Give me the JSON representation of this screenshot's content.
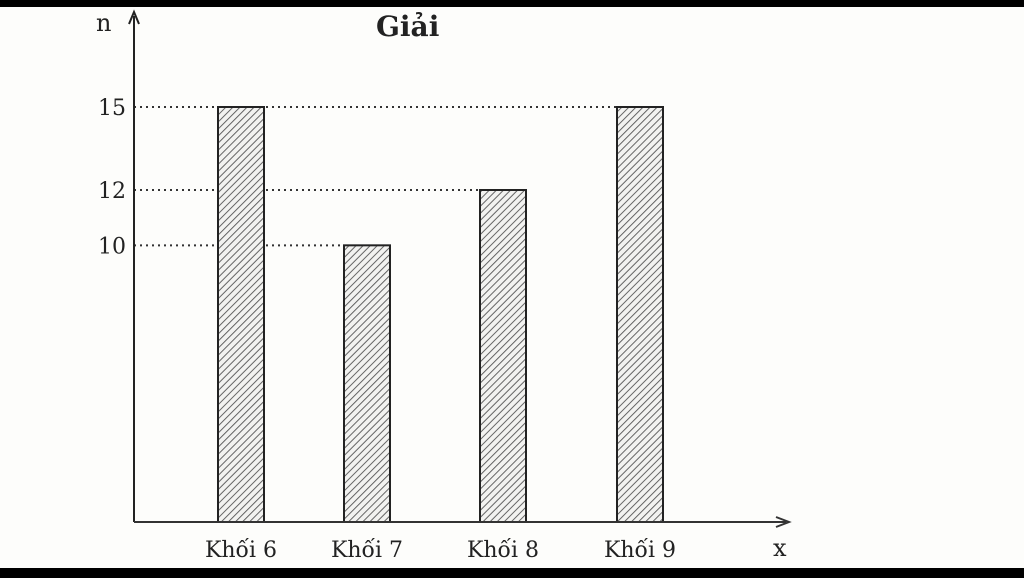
{
  "chart_data": {
    "type": "bar",
    "title": "Giải",
    "xlabel": "x",
    "ylabel": "n",
    "categories": [
      "Khối 6",
      "Khối 7",
      "Khối 8",
      "Khối 9"
    ],
    "values": [
      15,
      10,
      12,
      15
    ],
    "yticks": [
      "10",
      "12",
      "15"
    ],
    "ylim": [
      0,
      18
    ],
    "grid": false,
    "bar_fill": "diagonal-hatch",
    "colors": {
      "bar_stroke": "#222222",
      "hatch": "#555555",
      "background": "#fdfdfb"
    }
  }
}
